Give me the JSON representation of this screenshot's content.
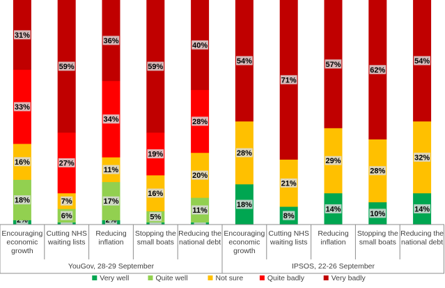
{
  "chart_data": {
    "type": "bar",
    "stacked": true,
    "normalized": true,
    "grid": false,
    "legend_position": "bottom",
    "groups": [
      {
        "label": "YouGov, 28-29 September",
        "categories": [
          "Encouraging economic growth",
          "Cutting NHS waiting lists",
          "Reducing inflation",
          "Stopping the small boats",
          "Reducing the national debt"
        ],
        "series": [
          {
            "name": "Very well",
            "color": "#00a651",
            "values": [
              2,
              1,
              2,
              1,
              1
            ]
          },
          {
            "name": "Quite well",
            "color": "#92d050",
            "values": [
              18,
              6,
              17,
              5,
              11
            ]
          },
          {
            "name": "Not sure",
            "color": "#ffc000",
            "values": [
              16,
              7,
              11,
              16,
              20
            ]
          },
          {
            "name": "Quite badly",
            "color": "#ff0000",
            "values": [
              33,
              27,
              34,
              19,
              28
            ]
          },
          {
            "name": "Very badly",
            "color": "#c00000",
            "values": [
              31,
              59,
              36,
              59,
              40
            ]
          }
        ]
      },
      {
        "label": "IPSOS, 22-26 September",
        "categories": [
          "Encouraging economic growth",
          "Cutting NHS waiting lists",
          "Reducing inflation",
          "Stopping the small boats",
          "Reducing the national debt"
        ],
        "series": [
          {
            "name": "Very well",
            "color": "#00a651",
            "values": [
              18,
              8,
              14,
              10,
              14
            ]
          },
          {
            "name": "Quite well",
            "color": "#92d050",
            "values": [
              null,
              null,
              null,
              null,
              null
            ]
          },
          {
            "name": "Not sure",
            "color": "#ffc000",
            "values": [
              28,
              21,
              29,
              28,
              32
            ]
          },
          {
            "name": "Quite badly",
            "color": "#ff0000",
            "values": [
              null,
              null,
              null,
              null,
              null
            ]
          },
          {
            "name": "Very badly",
            "color": "#c00000",
            "values": [
              54,
              71,
              57,
              62,
              54
            ]
          }
        ]
      }
    ],
    "category_display_lines": [
      [
        "Encouraging",
        "economic",
        "growth"
      ],
      [
        "Cutting NHS",
        "waiting lists"
      ],
      [
        "Reducing",
        "inflation"
      ],
      [
        "Stopping the",
        "small boats"
      ],
      [
        "Reducing the",
        "national debt"
      ]
    ],
    "legend": [
      {
        "label": "Very well",
        "color": "#00a651"
      },
      {
        "label": "Quite well",
        "color": "#92d050"
      },
      {
        "label": "Not sure",
        "color": "#ffc000"
      },
      {
        "label": "Quite badly",
        "color": "#ff0000"
      },
      {
        "label": "Very badly",
        "color": "#c00000"
      }
    ],
    "label_suffix": "%"
  }
}
